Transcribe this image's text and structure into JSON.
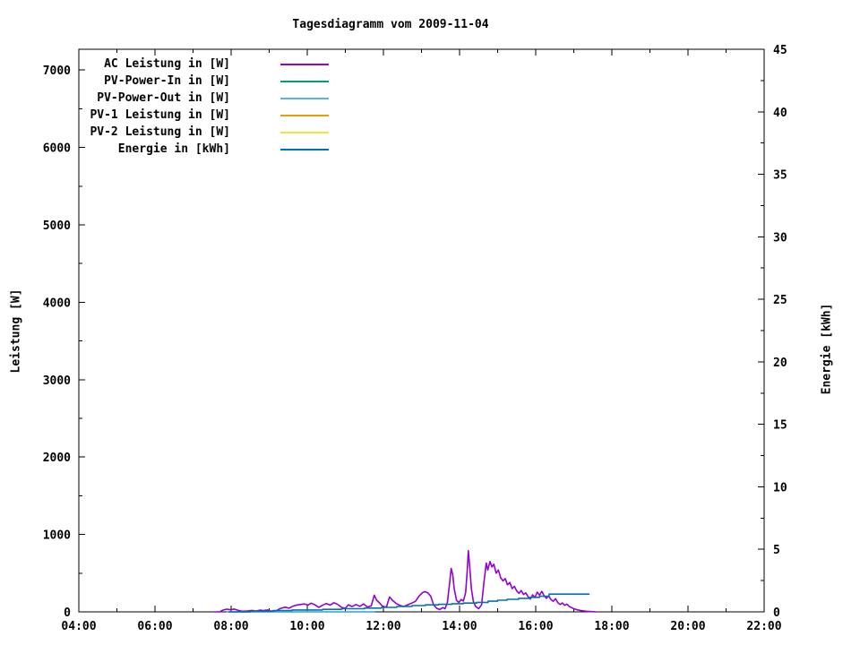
{
  "chart_data": {
    "type": "line",
    "title": "Tagesdiagramm vom 2009-11-04",
    "x_axis": {
      "tick_labels": [
        "04:00",
        "06:00",
        "08:00",
        "10:00",
        "12:00",
        "14:00",
        "16:00",
        "18:00",
        "20:00",
        "22:00"
      ],
      "range_hours": [
        4,
        22
      ],
      "major_step_hours": 2,
      "minor_step_hours": 1
    },
    "y_left": {
      "label": "Leistung [W]",
      "tick_labels": [
        "0",
        "1000",
        "2000",
        "3000",
        "4000",
        "5000",
        "6000",
        "7000"
      ],
      "tick_values": [
        0,
        1000,
        2000,
        3000,
        4000,
        5000,
        6000,
        7000
      ],
      "range": [
        0,
        7268
      ],
      "minor_step": 500
    },
    "y_right": {
      "label": "Energie [kWh]",
      "tick_labels": [
        "0",
        "5",
        "10",
        "15",
        "20",
        "25",
        "30",
        "35",
        "40",
        "45"
      ],
      "tick_values": [
        0,
        5,
        10,
        15,
        20,
        25,
        30,
        35,
        40,
        45
      ],
      "range": [
        0,
        45
      ],
      "minor_step": 2.5
    },
    "legend": [
      {
        "label": "AC Leistung in [W]",
        "color": "#9400d3"
      },
      {
        "label": "PV-Power-In in [W]",
        "color": "#009e73"
      },
      {
        "label": "PV-Power-Out in [W]",
        "color": "#56b4e9"
      },
      {
        "label": "PV-1 Leistung in [W]",
        "color": "#e69f00"
      },
      {
        "label": "PV-2 Leistung in [W]",
        "color": "#f0e442"
      },
      {
        "label": "Energie in [kWh]",
        "color": "#0072b2"
      }
    ],
    "series": [
      {
        "name": "PV-Power-In in [W]",
        "color": "#009e73",
        "axis": "left",
        "step": false,
        "points": [
          [
            7.9,
            0
          ],
          [
            11.75,
            0
          ]
        ]
      },
      {
        "name": "PV-Power-Out in [W]",
        "color": "#56b4e9",
        "axis": "left",
        "step": false,
        "points": [
          [
            7.9,
            0
          ],
          [
            11.75,
            0
          ]
        ]
      },
      {
        "name": "PV-1 Leistung in [W]",
        "color": "#e69f00",
        "axis": "left",
        "step": false,
        "points": []
      },
      {
        "name": "PV-2 Leistung in [W]",
        "color": "#f0e442",
        "axis": "left",
        "step": false,
        "points": []
      },
      {
        "name": "AC Leistung in [W]",
        "color": "#9400d3",
        "axis": "left",
        "step": false,
        "points": [
          [
            7.55,
            0
          ],
          [
            7.7,
            0
          ],
          [
            7.78,
            22
          ],
          [
            7.88,
            35
          ],
          [
            7.98,
            28
          ],
          [
            8.08,
            36
          ],
          [
            8.18,
            20
          ],
          [
            8.28,
            8
          ],
          [
            8.42,
            12
          ],
          [
            8.55,
            18
          ],
          [
            8.65,
            10
          ],
          [
            8.75,
            22
          ],
          [
            8.85,
            16
          ],
          [
            8.95,
            24
          ],
          [
            9.05,
            10
          ],
          [
            9.18,
            14
          ],
          [
            9.3,
            45
          ],
          [
            9.42,
            60
          ],
          [
            9.52,
            48
          ],
          [
            9.62,
            72
          ],
          [
            9.72,
            88
          ],
          [
            9.82,
            95
          ],
          [
            9.92,
            102
          ],
          [
            10.02,
            88
          ],
          [
            10.1,
            112
          ],
          [
            10.2,
            92
          ],
          [
            10.3,
            58
          ],
          [
            10.4,
            84
          ],
          [
            10.5,
            108
          ],
          [
            10.6,
            88
          ],
          [
            10.7,
            118
          ],
          [
            10.8,
            96
          ],
          [
            10.9,
            58
          ],
          [
            11.0,
            46
          ],
          [
            11.08,
            92
          ],
          [
            11.18,
            68
          ],
          [
            11.28,
            95
          ],
          [
            11.38,
            72
          ],
          [
            11.48,
            102
          ],
          [
            11.58,
            62
          ],
          [
            11.68,
            78
          ],
          [
            11.76,
            215
          ],
          [
            11.82,
            150
          ],
          [
            11.9,
            115
          ],
          [
            11.98,
            68
          ],
          [
            12.08,
            62
          ],
          [
            12.16,
            192
          ],
          [
            12.24,
            148
          ],
          [
            12.34,
            108
          ],
          [
            12.44,
            82
          ],
          [
            12.54,
            70
          ],
          [
            12.64,
            92
          ],
          [
            12.74,
            112
          ],
          [
            12.84,
            135
          ],
          [
            12.94,
            205
          ],
          [
            13.02,
            245
          ],
          [
            13.08,
            262
          ],
          [
            13.16,
            248
          ],
          [
            13.24,
            205
          ],
          [
            13.32,
            90
          ],
          [
            13.4,
            45
          ],
          [
            13.48,
            30
          ],
          [
            13.56,
            55
          ],
          [
            13.62,
            40
          ],
          [
            13.68,
            120
          ],
          [
            13.74,
            380
          ],
          [
            13.78,
            560
          ],
          [
            13.82,
            480
          ],
          [
            13.86,
            300
          ],
          [
            13.92,
            150
          ],
          [
            13.98,
            120
          ],
          [
            14.04,
            160
          ],
          [
            14.1,
            140
          ],
          [
            14.16,
            250
          ],
          [
            14.2,
            520
          ],
          [
            14.23,
            790
          ],
          [
            14.27,
            560
          ],
          [
            14.31,
            300
          ],
          [
            14.36,
            140
          ],
          [
            14.42,
            70
          ],
          [
            14.5,
            40
          ],
          [
            14.58,
            90
          ],
          [
            14.64,
            380
          ],
          [
            14.7,
            630
          ],
          [
            14.74,
            540
          ],
          [
            14.8,
            650
          ],
          [
            14.85,
            580
          ],
          [
            14.9,
            615
          ],
          [
            14.96,
            500
          ],
          [
            15.02,
            540
          ],
          [
            15.08,
            440
          ],
          [
            15.14,
            400
          ],
          [
            15.2,
            430
          ],
          [
            15.26,
            350
          ],
          [
            15.32,
            380
          ],
          [
            15.38,
            300
          ],
          [
            15.44,
            330
          ],
          [
            15.5,
            270
          ],
          [
            15.56,
            240
          ],
          [
            15.62,
            275
          ],
          [
            15.68,
            225
          ],
          [
            15.74,
            245
          ],
          [
            15.8,
            195
          ],
          [
            15.86,
            165
          ],
          [
            15.92,
            220
          ],
          [
            15.98,
            185
          ],
          [
            16.04,
            255
          ],
          [
            16.1,
            215
          ],
          [
            16.16,
            265
          ],
          [
            16.22,
            210
          ],
          [
            16.28,
            175
          ],
          [
            16.34,
            205
          ],
          [
            16.4,
            160
          ],
          [
            16.46,
            135
          ],
          [
            16.52,
            170
          ],
          [
            16.58,
            120
          ],
          [
            16.64,
            95
          ],
          [
            16.7,
            115
          ],
          [
            16.76,
            85
          ],
          [
            16.82,
            100
          ],
          [
            16.88,
            70
          ],
          [
            16.94,
            55
          ],
          [
            17.0,
            40
          ],
          [
            17.1,
            25
          ],
          [
            17.2,
            15
          ],
          [
            17.32,
            8
          ],
          [
            17.45,
            4
          ],
          [
            17.58,
            0
          ]
        ]
      },
      {
        "name": "Energie in [kWh]",
        "color": "#0072b2",
        "axis": "right",
        "step": true,
        "points": [
          [
            7.95,
            0
          ],
          [
            8.5,
            0.05
          ],
          [
            9.1,
            0.1
          ],
          [
            9.6,
            0.15
          ],
          [
            10.4,
            0.2
          ],
          [
            10.9,
            0.25
          ],
          [
            11.5,
            0.3
          ],
          [
            11.95,
            0.36
          ],
          [
            12.35,
            0.43
          ],
          [
            12.75,
            0.5
          ],
          [
            13.1,
            0.56
          ],
          [
            13.45,
            0.6
          ],
          [
            13.8,
            0.65
          ],
          [
            14.1,
            0.7
          ],
          [
            14.45,
            0.76
          ],
          [
            14.75,
            0.85
          ],
          [
            15.0,
            0.93
          ],
          [
            15.25,
            1.0
          ],
          [
            15.55,
            1.08
          ],
          [
            15.85,
            1.16
          ],
          [
            16.1,
            1.25
          ],
          [
            16.35,
            1.42
          ],
          [
            17.4,
            1.42
          ]
        ]
      }
    ]
  }
}
